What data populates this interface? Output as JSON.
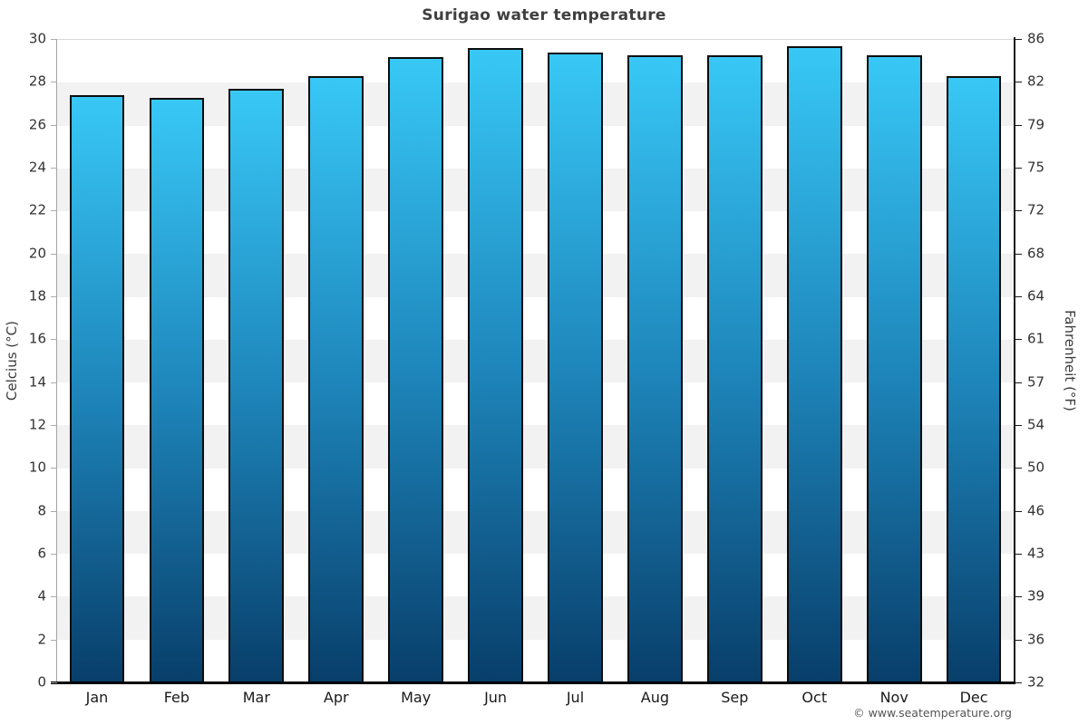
{
  "title": "Surigao water temperature",
  "footer": "© www.seatemperature.org",
  "axes": {
    "left_label": "Celcius (°C)",
    "right_label": "Fahrenheit (°F)"
  },
  "chart_data": {
    "type": "bar",
    "title": "Surigao water temperature",
    "categories": [
      "Jan",
      "Feb",
      "Mar",
      "Apr",
      "May",
      "Jun",
      "Jul",
      "Aug",
      "Sep",
      "Oct",
      "Nov",
      "Dec"
    ],
    "values": [
      27.4,
      27.3,
      27.7,
      28.3,
      29.2,
      29.6,
      29.4,
      29.3,
      29.3,
      29.7,
      29.3,
      28.3
    ],
    "unit": "°C",
    "xlabel": "",
    "ylabel_left": "Celcius (°C)",
    "ylabel_right": "Fahrenheit (°F)",
    "ylim": [
      0,
      30
    ],
    "yticks_celsius": [
      0,
      2,
      4,
      6,
      8,
      10,
      12,
      14,
      16,
      18,
      20,
      22,
      24,
      26,
      28,
      30
    ],
    "yticks_fahrenheit_labels": [
      "32",
      "36",
      "39",
      "43",
      "46",
      "50",
      "54",
      "57",
      "61",
      "64",
      "68",
      "72",
      "75",
      "79",
      "82",
      "86"
    ],
    "grid": "horizontal-bands",
    "legend": "none",
    "colors": {
      "bar_gradient_top": "#38c8f6",
      "bar_gradient_mid": "#1e86bb",
      "bar_gradient_bottom": "#083e6a",
      "bar_border": "#0d0d0d",
      "band_light": "#ffffff",
      "band_dark": "#f2f2f2",
      "axis_left_line": "#a3a3a3",
      "axis_right_line": "#1a1a1a",
      "axis_bottom_line": "#000000",
      "tick_label": "#333333",
      "title": "#3f3f3f",
      "footer": "#555555"
    }
  }
}
